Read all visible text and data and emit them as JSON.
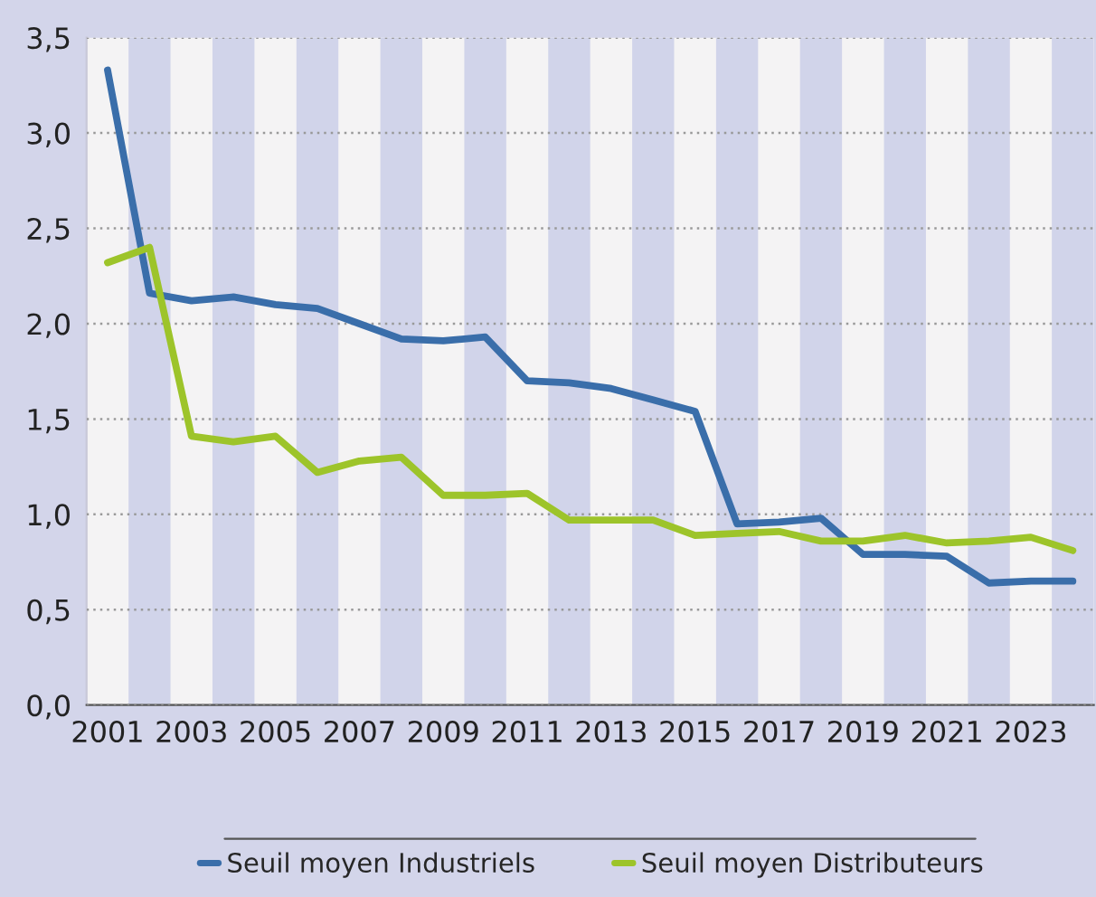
{
  "chart_data": {
    "type": "line",
    "x": [
      2001,
      2002,
      2003,
      2004,
      2005,
      2006,
      2007,
      2008,
      2009,
      2010,
      2011,
      2012,
      2013,
      2014,
      2015,
      2016,
      2017,
      2018,
      2019,
      2020,
      2021,
      2022,
      2023,
      2024
    ],
    "series": [
      {
        "name": "Seuil moyen Industriels",
        "color": "#3a6eaa",
        "values": [
          3.33,
          2.16,
          2.12,
          2.14,
          2.1,
          2.08,
          2.0,
          1.92,
          1.91,
          1.93,
          1.7,
          1.69,
          1.66,
          1.6,
          1.54,
          0.95,
          0.96,
          0.98,
          0.79,
          0.79,
          0.78,
          0.64,
          0.65,
          0.65
        ]
      },
      {
        "name": "Seuil moyen Distributeurs",
        "color": "#9dc42a",
        "values": [
          2.32,
          2.4,
          1.41,
          1.38,
          1.41,
          1.22,
          1.28,
          1.3,
          1.1,
          1.1,
          1.11,
          0.97,
          0.97,
          0.97,
          0.89,
          0.9,
          0.91,
          0.86,
          0.86,
          0.89,
          0.85,
          0.86,
          0.88,
          0.81
        ]
      }
    ],
    "xlim": [
      2000.5,
      2024.5
    ],
    "xticks": [
      2001,
      2003,
      2005,
      2007,
      2009,
      2011,
      2013,
      2015,
      2017,
      2019,
      2021,
      2023
    ],
    "ylim": [
      0,
      3.5
    ],
    "yticks": [
      {
        "value": 0,
        "label": "0,0"
      },
      {
        "value": 0.5,
        "label": "0,5"
      },
      {
        "value": 1,
        "label": "1,0"
      },
      {
        "value": 1.5,
        "label": "1,5"
      },
      {
        "value": 2,
        "label": "2,0"
      },
      {
        "value": 2.5,
        "label": "2,5"
      },
      {
        "value": 3,
        "label": "3,0"
      },
      {
        "value": 3.5,
        "label": "3,5"
      }
    ],
    "bands": [
      {
        "axis": "x",
        "from": 2001.5,
        "to": 2002.5,
        "color": "#d1d4ea"
      },
      {
        "axis": "x",
        "from": 2003.5,
        "to": 2004.5,
        "color": "#d1d4ea"
      },
      {
        "axis": "x",
        "from": 2005.5,
        "to": 2006.5,
        "color": "#d1d4ea"
      },
      {
        "axis": "x",
        "from": 2007.5,
        "to": 2008.5,
        "color": "#d1d4ea"
      },
      {
        "axis": "x",
        "from": 2009.5,
        "to": 2010.5,
        "color": "#d1d4ea"
      },
      {
        "axis": "x",
        "from": 2011.5,
        "to": 2012.5,
        "color": "#d1d4ea"
      },
      {
        "axis": "x",
        "from": 2013.5,
        "to": 2014.5,
        "color": "#d1d4ea"
      },
      {
        "axis": "x",
        "from": 2015.5,
        "to": 2016.5,
        "color": "#d1d4ea"
      },
      {
        "axis": "x",
        "from": 2017.5,
        "to": 2018.5,
        "color": "#d1d4ea"
      },
      {
        "axis": "x",
        "from": 2019.5,
        "to": 2020.5,
        "color": "#d1d4ea"
      },
      {
        "axis": "x",
        "from": 2021.5,
        "to": 2022.5,
        "color": "#d1d4ea"
      },
      {
        "axis": "x",
        "from": 2023.5,
        "to": 2024.5,
        "color": "#d1d4ea"
      }
    ],
    "grid": "y",
    "legend": "bottom",
    "marker": "none",
    "line_style": "solid"
  }
}
